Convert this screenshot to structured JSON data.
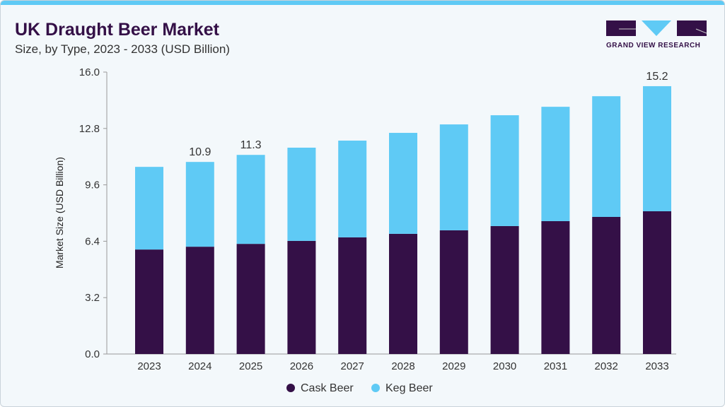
{
  "header": {
    "title": "UK Draught Beer Market",
    "subtitle": "Size, by Type, 2023 - 2033 (USD Billion)"
  },
  "logo": {
    "text": "GRAND VIEW RESEARCH"
  },
  "chart_data": {
    "type": "bar",
    "stacked": true,
    "title": "UK Draught Beer Market",
    "subtitle": "Size, by Type, 2023 - 2033 (USD Billion)",
    "xlabel": "",
    "ylabel": "Market Size (USD Billion)",
    "ylim": [
      0,
      16
    ],
    "yticks": [
      "0.0",
      "3.2",
      "6.4",
      "9.6",
      "12.8",
      "16.0"
    ],
    "categories": [
      "2023",
      "2024",
      "2025",
      "2026",
      "2027",
      "2028",
      "2029",
      "2030",
      "2031",
      "2032",
      "2033"
    ],
    "series": [
      {
        "name": "Cask Beer",
        "color": "#341047",
        "values": [
          5.93,
          6.09,
          6.25,
          6.42,
          6.62,
          6.82,
          7.02,
          7.26,
          7.54,
          7.78,
          8.1
        ]
      },
      {
        "name": "Keg Beer",
        "color": "#5fcaf5",
        "values": [
          4.69,
          4.81,
          5.05,
          5.29,
          5.49,
          5.73,
          6.01,
          6.29,
          6.49,
          6.85,
          7.1
        ]
      }
    ],
    "data_labels": {
      "2024": "10.9",
      "2025": "11.3",
      "2033": "15.2"
    },
    "legend": "bottom",
    "grid": false
  }
}
